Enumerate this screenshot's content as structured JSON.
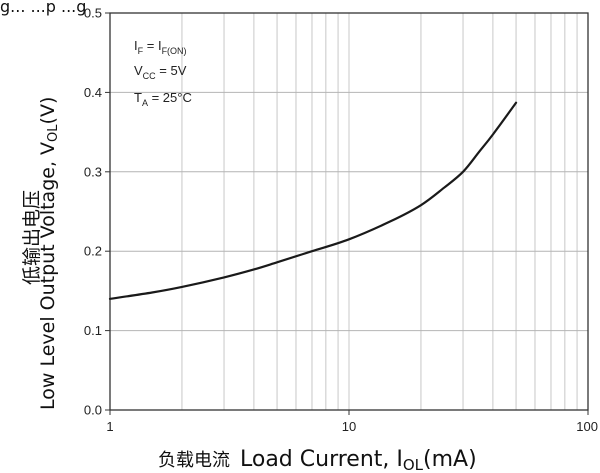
{
  "title_fragment": "g... ...p ...g",
  "annotations": {
    "line1": {
      "main": "I",
      "sub": "F",
      "mid": " = I",
      "sub2": "F(ON)"
    },
    "line2": {
      "main": "V",
      "sub": "CC",
      "rest": " = 5V"
    },
    "line3": {
      "main": "T",
      "sub": "A",
      "rest": " = 25°C"
    }
  },
  "ylabel": {
    "chinese": "低输出电压",
    "english_prefix": "Low Level Output Voltage, V",
    "english_sub": "OL",
    "english_suffix": "(V)"
  },
  "xlabel": {
    "chinese": "负载电流",
    "english_prefix": "Load Current, I",
    "english_sub": "OL",
    "english_suffix": "(mA)"
  },
  "chart_data": {
    "type": "line",
    "x_scale": "log",
    "xlim": [
      1,
      100
    ],
    "ylim": [
      0.0,
      0.5
    ],
    "x_ticks": [
      1,
      10,
      100
    ],
    "x_tick_labels": [
      "1",
      "10",
      "100"
    ],
    "y_ticks": [
      0.0,
      0.1,
      0.2,
      0.3,
      0.4,
      0.5
    ],
    "y_tick_labels": [
      "0.0",
      "0.1",
      "0.2",
      "0.3",
      "0.4",
      "0.5"
    ],
    "grid": true,
    "series": [
      {
        "x": [
          1,
          1.5,
          2,
          3,
          4,
          5,
          7,
          10,
          15,
          20,
          25,
          30,
          35,
          40,
          50
        ],
        "y": [
          0.14,
          0.148,
          0.155,
          0.167,
          0.177,
          0.186,
          0.2,
          0.215,
          0.238,
          0.258,
          0.28,
          0.3,
          0.325,
          0.347,
          0.387
        ]
      }
    ]
  }
}
